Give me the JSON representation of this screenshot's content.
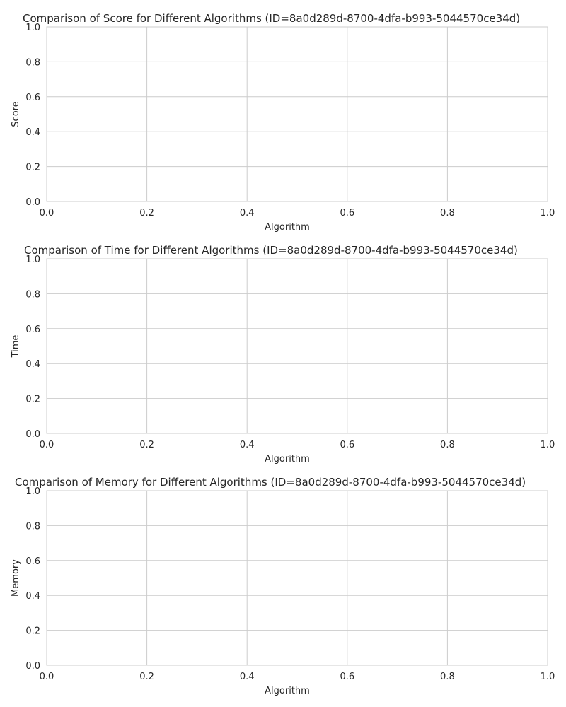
{
  "chart_data": [
    {
      "type": "bar",
      "title": "Comparison of Score for Different Algorithms (ID=8a0d289d-8700-4dfa-b993-5044570ce34d)",
      "xlabel": "Algorithm",
      "ylabel": "Score",
      "categories": [],
      "values": [],
      "xlim": [
        0,
        1
      ],
      "ylim": [
        0,
        1
      ],
      "xticks": [
        "0.0",
        "0.2",
        "0.4",
        "0.6",
        "0.8",
        "1.0"
      ],
      "yticks": [
        "0.0",
        "0.2",
        "0.4",
        "0.6",
        "0.8",
        "1.0"
      ],
      "grid": true
    },
    {
      "type": "bar",
      "title": "Comparison of Time for Different Algorithms (ID=8a0d289d-8700-4dfa-b993-5044570ce34d)",
      "xlabel": "Algorithm",
      "ylabel": "Time",
      "categories": [],
      "values": [],
      "xlim": [
        0,
        1
      ],
      "ylim": [
        0,
        1
      ],
      "xticks": [
        "0.0",
        "0.2",
        "0.4",
        "0.6",
        "0.8",
        "1.0"
      ],
      "yticks": [
        "0.0",
        "0.2",
        "0.4",
        "0.6",
        "0.8",
        "1.0"
      ],
      "grid": true
    },
    {
      "type": "bar",
      "title": "Comparison of Memory for Different Algorithms (ID=8a0d289d-8700-4dfa-b993-5044570ce34d)",
      "xlabel": "Algorithm",
      "ylabel": "Memory",
      "categories": [],
      "values": [],
      "xlim": [
        0,
        1
      ],
      "ylim": [
        0,
        1
      ],
      "xticks": [
        "0.0",
        "0.2",
        "0.4",
        "0.6",
        "0.8",
        "1.0"
      ],
      "yticks": [
        "0.0",
        "0.2",
        "0.4",
        "0.6",
        "0.8",
        "1.0"
      ],
      "grid": true
    }
  ]
}
